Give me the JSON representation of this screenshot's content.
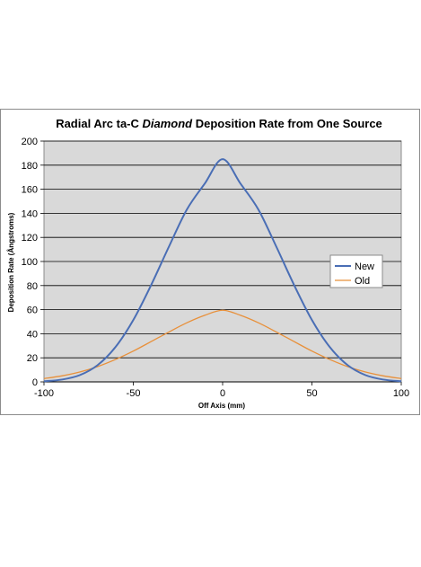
{
  "chart_data": {
    "type": "line",
    "title": {
      "before": "Radial Arc ta-C ",
      "italic": "Diamond",
      "after": " Deposition Rate from One Source"
    },
    "xlabel": "Off Axis (mm)",
    "ylabel": "Deposition Rate (Ångstroms)",
    "xlim": [
      -100,
      100
    ],
    "ylim": [
      0,
      200
    ],
    "x_ticks": [
      -100,
      -50,
      0,
      50,
      100
    ],
    "y_ticks": [
      0,
      20,
      40,
      60,
      80,
      100,
      120,
      140,
      160,
      180,
      200
    ],
    "grid": true,
    "legend_position": "right",
    "plot_background": "#d9d9d9",
    "x": [
      -100,
      -90,
      -80,
      -70,
      -60,
      -50,
      -40,
      -30,
      -20,
      -10,
      0,
      10,
      20,
      30,
      40,
      50,
      60,
      70,
      80,
      90,
      100
    ],
    "series": [
      {
        "name": "New",
        "color": "#4a6eb5",
        "values": [
          0.5,
          1.9,
          5.6,
          13.9,
          28.9,
          51.4,
          80.5,
          112.5,
          143.2,
          164.7,
          185.0,
          164.7,
          143.2,
          112.5,
          80.5,
          51.4,
          28.9,
          13.9,
          5.6,
          1.9,
          0.5
        ]
      },
      {
        "name": "Old",
        "color": "#e8903a",
        "values": [
          2.8,
          5.0,
          8.2,
          12.7,
          18.6,
          25.6,
          33.5,
          41.5,
          49.1,
          55.3,
          59.5,
          55.3,
          49.1,
          41.5,
          33.5,
          25.6,
          18.6,
          12.7,
          8.2,
          5.0,
          2.8
        ]
      }
    ]
  }
}
